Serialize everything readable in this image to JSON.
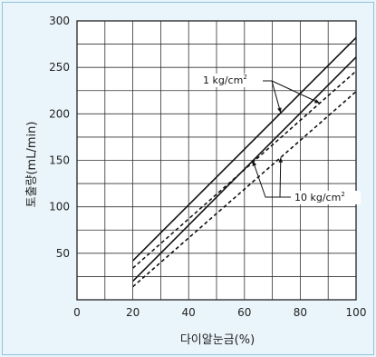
{
  "chart_data": {
    "type": "line",
    "xlabel": "다이알눈금(%)",
    "ylabel": "토출량(mL/min)",
    "xlim": [
      0,
      100
    ],
    "ylim": [
      0,
      300
    ],
    "x_ticks": [
      "0",
      "20",
      "40",
      "60",
      "80",
      "100"
    ],
    "y_ticks": [
      "50",
      "100",
      "150",
      "200",
      "250",
      "300"
    ],
    "grid": true,
    "series": [
      {
        "name": "1 kg/cm²",
        "style": "solid",
        "x": [
          20,
          100
        ],
        "y": [
          42,
          282
        ]
      },
      {
        "name": "1 kg/cm²",
        "style": "dashed",
        "x": [
          20,
          100
        ],
        "y": [
          34,
          246
        ]
      },
      {
        "name": "10 kg/cm²",
        "style": "solid",
        "x": [
          20,
          100
        ],
        "y": [
          20,
          261
        ]
      },
      {
        "name": "10 kg/cm²",
        "style": "dashed",
        "x": [
          20,
          100
        ],
        "y": [
          14,
          224
        ]
      }
    ],
    "annotations": [
      {
        "text": "1 kg/cm",
        "sup": "2",
        "points_to": [
          0,
          1
        ]
      },
      {
        "text": "10 kg/cm",
        "sup": "2",
        "points_to": [
          2,
          3
        ]
      }
    ]
  }
}
